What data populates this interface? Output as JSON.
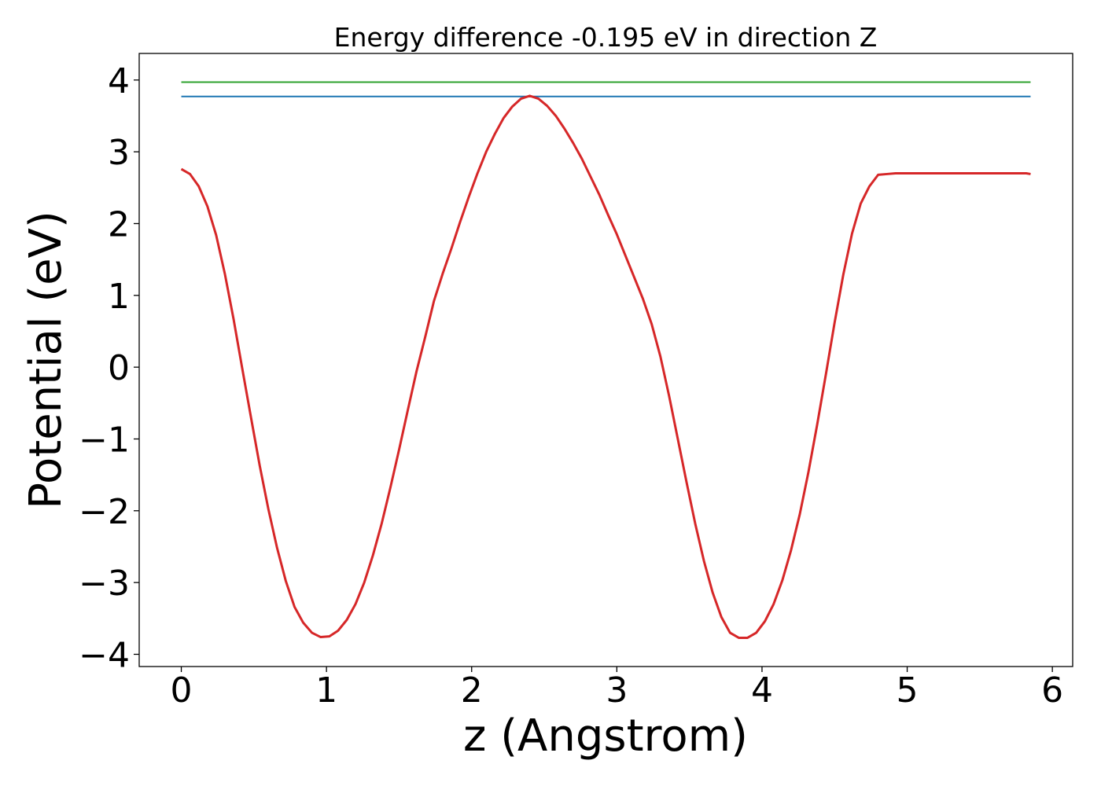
{
  "chart_data": {
    "type": "line",
    "title": "Energy difference -0.195 eV in direction Z",
    "xlabel": "z (Angstrom)",
    "ylabel": "Potential (eV)",
    "xlim": [
      -0.29,
      6.14
    ],
    "ylim": [
      -4.17,
      4.37
    ],
    "xticks": [
      0,
      1,
      2,
      3,
      4,
      5,
      6
    ],
    "xtick_labels": [
      "0",
      "1",
      "2",
      "3",
      "4",
      "5",
      "6"
    ],
    "yticks": [
      -4,
      -3,
      -2,
      -1,
      0,
      1,
      2,
      3,
      4
    ],
    "ytick_labels": [
      "−4",
      "−3",
      "−2",
      "−1",
      "0",
      "1",
      "2",
      "3",
      "4"
    ],
    "grid": false,
    "series": [
      {
        "color": "#d62728",
        "style": "line",
        "x": [
          0.0,
          0.06,
          0.12,
          0.18,
          0.24,
          0.3,
          0.36,
          0.42,
          0.48,
          0.54,
          0.6,
          0.66,
          0.72,
          0.78,
          0.84,
          0.9,
          0.96,
          1.02,
          1.08,
          1.14,
          1.2,
          1.26,
          1.32,
          1.38,
          1.44,
          1.5,
          1.56,
          1.62,
          1.68,
          1.74,
          1.8,
          1.86,
          1.92,
          1.98,
          2.04,
          2.1,
          2.16,
          2.22,
          2.28,
          2.34,
          2.4,
          2.46,
          2.52,
          2.58,
          2.64,
          2.7,
          2.76,
          2.82,
          2.88,
          2.94,
          3.0,
          3.06,
          3.12,
          3.18,
          3.24,
          3.3,
          3.36,
          3.42,
          3.48,
          3.54,
          3.6,
          3.66,
          3.72,
          3.78,
          3.84,
          3.9,
          3.96,
          4.02,
          4.08,
          4.14,
          4.2,
          4.26,
          4.32,
          4.38,
          4.44,
          4.5,
          4.56,
          4.62,
          4.68,
          4.74,
          4.8,
          4.86,
          4.92,
          4.98,
          5.04,
          5.1,
          5.16,
          5.22,
          5.28,
          5.34,
          5.4,
          5.46,
          5.52,
          5.58,
          5.64,
          5.7,
          5.76,
          5.82,
          5.85
        ],
        "y": [
          2.76,
          2.69,
          2.52,
          2.24,
          1.84,
          1.3,
          0.67,
          -0.02,
          -0.7,
          -1.37,
          -1.98,
          -2.52,
          -2.98,
          -3.34,
          -3.56,
          -3.7,
          -3.76,
          -3.75,
          -3.67,
          -3.52,
          -3.3,
          -3.0,
          -2.62,
          -2.18,
          -1.68,
          -1.15,
          -0.6,
          -0.06,
          0.42,
          0.92,
          1.3,
          1.65,
          2.02,
          2.37,
          2.7,
          3.0,
          3.25,
          3.47,
          3.63,
          3.74,
          3.78,
          3.74,
          3.64,
          3.5,
          3.32,
          3.12,
          2.9,
          2.65,
          2.4,
          2.12,
          1.85,
          1.55,
          1.25,
          0.95,
          0.6,
          0.15,
          -0.4,
          -1.0,
          -1.6,
          -2.18,
          -2.7,
          -3.14,
          -3.48,
          -3.7,
          -3.77,
          -3.77,
          -3.7,
          -3.54,
          -3.3,
          -2.97,
          -2.55,
          -2.05,
          -1.46,
          -0.8,
          -0.1,
          0.62,
          1.29,
          1.86,
          2.28,
          2.52,
          2.68,
          2.69,
          2.7,
          2.7,
          2.7,
          2.7,
          2.7,
          2.7,
          2.7,
          2.7,
          2.7,
          2.7,
          2.7,
          2.7,
          2.7,
          2.7,
          2.7,
          2.7,
          2.69
        ]
      },
      {
        "color": "#2ca02c",
        "style": "hline",
        "x": [
          0.0,
          5.85
        ],
        "y": [
          3.97,
          3.97
        ]
      },
      {
        "color": "#1f77b4",
        "style": "hline",
        "x": [
          0.0,
          5.85
        ],
        "y": [
          3.77,
          3.77
        ]
      }
    ]
  }
}
